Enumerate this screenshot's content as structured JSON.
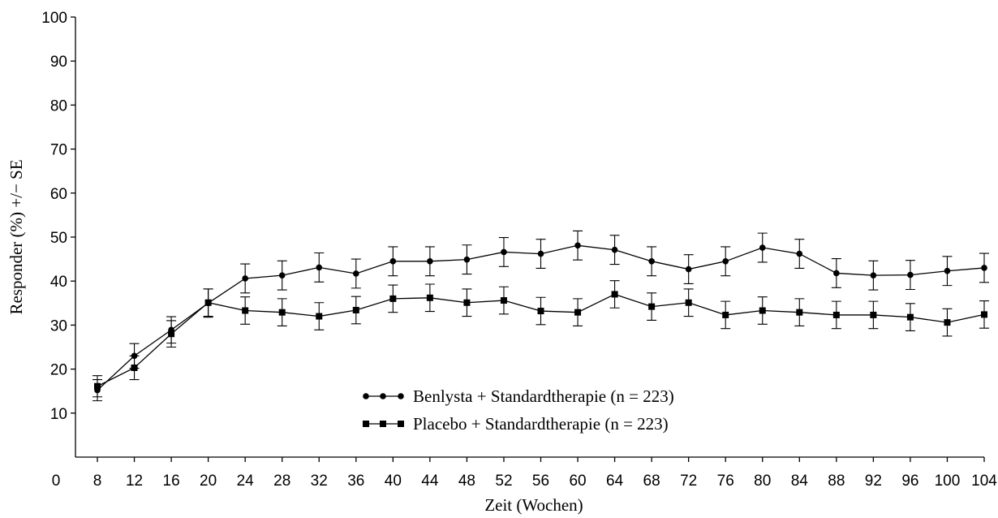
{
  "chart_data": {
    "type": "line",
    "title": "",
    "xlabel": "Zeit (Wochen)",
    "ylabel": "Responder (%) +/− SE",
    "xlim": [
      0,
      104
    ],
    "ylim": [
      0,
      100
    ],
    "x_ticks": [
      "0",
      "8",
      "12",
      "16",
      "20",
      "24",
      "28",
      "32",
      "36",
      "40",
      "44",
      "48",
      "52",
      "56",
      "60",
      "64",
      "68",
      "72",
      "76",
      "80",
      "84",
      "88",
      "92",
      "96",
      "100",
      "104"
    ],
    "y_ticks": [
      "10",
      "20",
      "30",
      "40",
      "50",
      "60",
      "70",
      "80",
      "90",
      "100"
    ],
    "grid": false,
    "legend_position": "center-bottom",
    "x": [
      8,
      12,
      16,
      20,
      24,
      28,
      32,
      36,
      40,
      44,
      48,
      52,
      56,
      60,
      64,
      68,
      72,
      76,
      80,
      84,
      88,
      92,
      96,
      100,
      104
    ],
    "series": [
      {
        "name": "Benlysta + Standardtherapie (n = 223)",
        "marker": "circle",
        "values": [
          15.2,
          23.0,
          28.9,
          35.0,
          40.6,
          41.3,
          43.1,
          41.7,
          44.5,
          44.5,
          44.9,
          46.6,
          46.2,
          48.1,
          47.1,
          44.5,
          42.7,
          44.5,
          47.6,
          46.2,
          41.8,
          41.3,
          41.4,
          42.3,
          43.0
        ],
        "se": [
          2.4,
          2.8,
          3.0,
          3.2,
          3.3,
          3.3,
          3.3,
          3.3,
          3.3,
          3.3,
          3.3,
          3.3,
          3.3,
          3.3,
          3.3,
          3.3,
          3.3,
          3.3,
          3.3,
          3.3,
          3.3,
          3.3,
          3.3,
          3.3,
          3.3
        ]
      },
      {
        "name": "Placebo + Standardtherapie (n = 223)",
        "marker": "square",
        "values": [
          16.1,
          20.3,
          28.0,
          35.1,
          33.3,
          32.9,
          32.0,
          33.4,
          36.0,
          36.2,
          35.1,
          35.6,
          33.2,
          32.9,
          37.0,
          34.2,
          35.1,
          32.3,
          33.3,
          32.9,
          32.3,
          32.3,
          31.8,
          30.6,
          32.4
        ],
        "se": [
          2.4,
          2.7,
          3.0,
          3.1,
          3.1,
          3.1,
          3.1,
          3.1,
          3.1,
          3.1,
          3.1,
          3.1,
          3.1,
          3.1,
          3.1,
          3.1,
          3.1,
          3.1,
          3.1,
          3.1,
          3.1,
          3.1,
          3.1,
          3.1,
          3.1
        ]
      }
    ]
  }
}
